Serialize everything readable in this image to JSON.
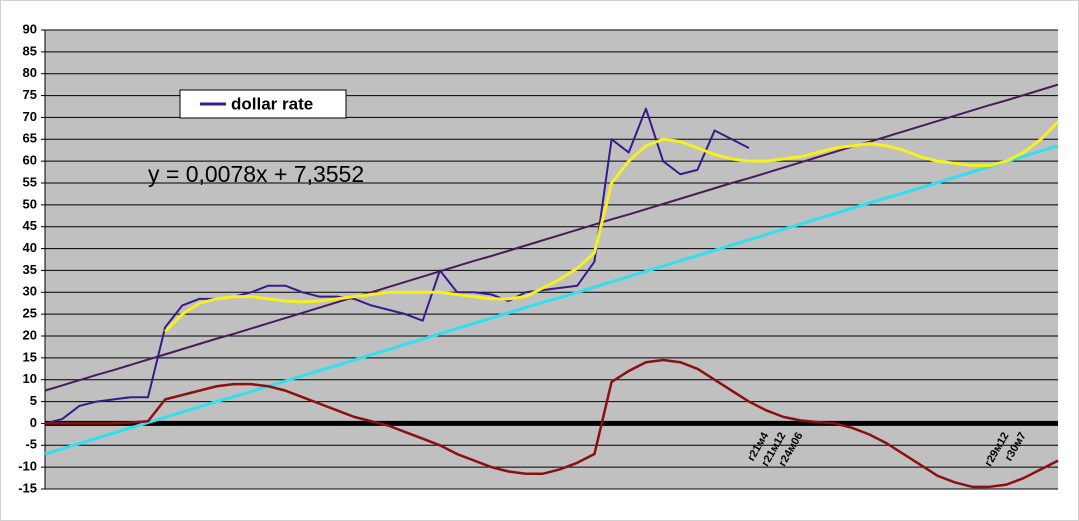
{
  "chart_data": {
    "type": "line",
    "annotation": "y = 0,0078x + 7,3552",
    "categories": [
      null,
      null,
      null,
      null,
      null,
      null,
      null,
      null,
      null,
      null,
      null,
      null,
      null,
      null,
      null,
      null,
      null,
      null,
      null,
      null,
      null,
      null,
      null,
      null,
      null,
      null,
      null,
      null,
      null,
      null,
      null,
      null,
      null,
      null,
      null,
      null,
      null,
      null,
      null,
      null,
      null,
      null,
      "г21м4",
      "г21м12",
      "г24м06",
      null,
      null,
      null,
      null,
      null,
      null,
      null,
      null,
      null,
      null,
      null,
      "г29м12",
      "г30м7",
      null,
      null
    ],
    "ylim": [
      -15,
      90
    ],
    "yticks": [
      -15,
      -10,
      -5,
      0,
      5,
      10,
      15,
      20,
      25,
      30,
      35,
      40,
      45,
      50,
      55,
      60,
      65,
      70,
      75,
      80,
      85,
      90
    ],
    "grid": true,
    "series": [
      {
        "name": "dollar rate",
        "color": "#3a1a8a",
        "width": 2,
        "legend": true,
        "values": [
          0,
          1,
          4,
          5,
          5.5,
          6,
          6,
          22,
          27,
          28.5,
          28.5,
          29,
          30,
          31.5,
          31.5,
          30,
          29,
          29,
          28.5,
          27,
          26,
          25,
          23.5,
          35,
          30,
          30,
          29.5,
          28,
          30,
          30.5,
          31,
          31.5,
          37,
          65,
          62,
          72,
          60,
          57,
          58,
          67,
          65,
          63,
          null,
          null,
          null,
          null,
          null,
          null,
          null,
          null,
          null,
          null,
          null,
          null,
          null,
          null,
          null,
          null,
          null,
          null
        ]
      },
      {
        "color": "#f5f020",
        "width": 3,
        "values": [
          null,
          null,
          null,
          null,
          null,
          null,
          null,
          21,
          25,
          27.5,
          28.5,
          29,
          29,
          28.5,
          28,
          27.8,
          28,
          28.5,
          29,
          29.5,
          30,
          30,
          30,
          30,
          29.5,
          29,
          28.5,
          28.5,
          29,
          31,
          33,
          35.5,
          39,
          55,
          60,
          63.5,
          65,
          64.5,
          63,
          61.5,
          60.5,
          60,
          60,
          60.5,
          61,
          62,
          63,
          63.5,
          64,
          63.5,
          62.5,
          61,
          60,
          59.5,
          59,
          59,
          60,
          62,
          65,
          69
        ]
      },
      {
        "color": "#4a1a5a",
        "width": 2,
        "values": [
          7.5,
          8.7,
          9.9,
          11.1,
          12.2,
          13.4,
          14.6,
          15.8,
          17,
          18.2,
          19.4,
          20.5,
          21.7,
          22.9,
          24.1,
          25.3,
          26.5,
          27.7,
          28.9,
          30,
          31.2,
          32.4,
          33.6,
          34.8,
          36,
          37.2,
          38.3,
          39.5,
          40.7,
          41.9,
          43.1,
          44.3,
          45.5,
          46.7,
          47.8,
          49,
          50.2,
          51.4,
          52.6,
          53.8,
          55,
          56.1,
          57.3,
          58.5,
          59.7,
          60.9,
          62.1,
          63.3,
          64.4,
          65.6,
          66.8,
          68,
          69.2,
          70.4,
          71.6,
          72.8,
          73.9,
          75.1,
          76.3,
          77.5
        ]
      },
      {
        "color": "#30e0f0",
        "width": 3,
        "values": [
          -7,
          -5.8,
          -4.6,
          -3.4,
          -2.2,
          -1,
          0.2,
          1.4,
          2.6,
          3.8,
          5,
          6.1,
          7.3,
          8.5,
          9.7,
          10.9,
          12.1,
          13.3,
          14.5,
          15.7,
          16.9,
          18.1,
          19.3,
          20.5,
          21.7,
          22.9,
          24.1,
          25.3,
          26.5,
          27.7,
          28.8,
          30,
          31.2,
          32.4,
          33.6,
          34.8,
          36,
          37.2,
          38.4,
          39.6,
          40.8,
          42,
          43.2,
          44.4,
          45.6,
          46.8,
          48,
          49.2,
          50.4,
          51.6,
          52.7,
          53.9,
          55.1,
          56.3,
          57.5,
          58.7,
          59.9,
          61.1,
          62.3,
          63.5
        ]
      },
      {
        "color": "#8b1010",
        "width": 2.5,
        "values": [
          0,
          0,
          0,
          0,
          0,
          0.2,
          0.5,
          5.5,
          6.5,
          7.5,
          8.5,
          9,
          9,
          8.5,
          7.5,
          6,
          4.5,
          3,
          1.5,
          0.5,
          -0.5,
          -2,
          -3.5,
          -5,
          -7,
          -8.5,
          -10,
          -11,
          -11.5,
          -11.5,
          -10.5,
          -9,
          -7,
          9.5,
          12,
          14,
          14.5,
          14,
          12.5,
          10,
          7.5,
          5,
          3,
          1.5,
          0.7,
          0.3,
          0,
          -1,
          -2.5,
          -4.5,
          -7,
          -9.5,
          -12,
          -13.5,
          -14.5,
          -14.5,
          -14,
          -12.5,
          -10.5,
          -8.5
        ]
      }
    ]
  }
}
